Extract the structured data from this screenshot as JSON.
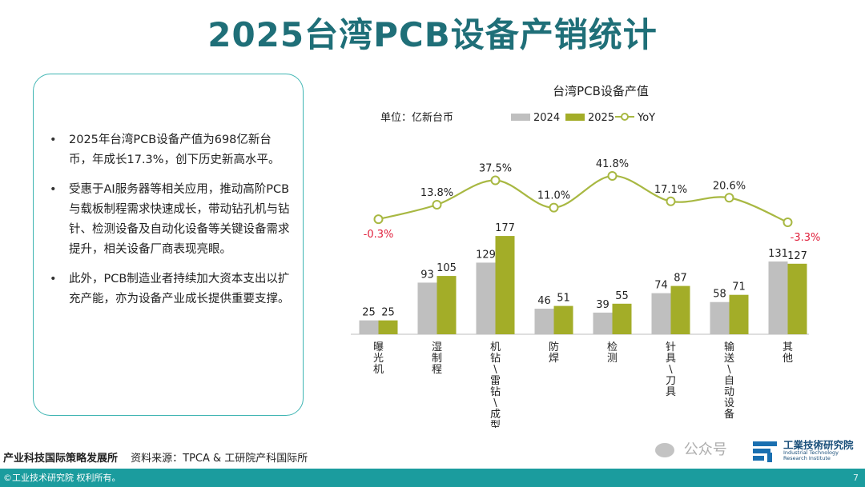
{
  "page": {
    "title": "2025台湾PCB设备产销统计"
  },
  "notes": [
    "2025年台湾PCB设备产值为698亿新台币，年成长17.3%，创下历史新高水平。",
    "受惠于AI服务器等相关应用，推动高阶PCB与载板制程需求快速成长，带动钻孔机与钻针、检测设备及自动化设备等关键设备需求提升，相关设备厂商表现亮眼。",
    "此外，PCB制造业者持续加大资本支出以扩充产能，亦为设备产业成长提供重要支撑。"
  ],
  "chart_data": {
    "type": "bar",
    "title": "台湾PCB设备产值",
    "unit_label": "单位：亿新台币",
    "categories": [
      "曝光机",
      "湿制程",
      "机钻\\雷钻\\成型",
      "防焊",
      "检测",
      "针具\\刀具",
      "输送\\自动设备",
      "其他"
    ],
    "series": [
      {
        "name": "2024",
        "values": [
          25,
          93,
          129,
          46,
          39,
          74,
          58,
          131
        ],
        "color": "#bfbfbf"
      },
      {
        "name": "2025",
        "values": [
          25,
          105,
          177,
          51,
          55,
          87,
          71,
          127
        ],
        "color": "#a3ad28"
      }
    ],
    "yoy": {
      "name": "YoY",
      "values": [
        -0.3,
        13.8,
        37.5,
        11.0,
        41.8,
        17.1,
        20.6,
        -3.3
      ],
      "labels": [
        "-0.3%",
        "13.8%",
        "37.5%",
        "11.0%",
        "41.8%",
        "17.1%",
        "20.6%",
        "-3.3%"
      ],
      "color": "#a8b842",
      "negative_color": "#e0203c"
    },
    "ylim": [
      0,
      180
    ],
    "legend_position": "top-right"
  },
  "footer": {
    "org": "产业科技国际策略发展所",
    "source": "资料来源：TPCA & 工研院产科国际所",
    "copyright": "©工业技术研究院  权利所有。",
    "page_number": "7"
  },
  "watermark": {
    "text": "公众号"
  },
  "logo": {
    "name": "工業技術研究院",
    "english": "Industrial Technology Research Institute"
  }
}
